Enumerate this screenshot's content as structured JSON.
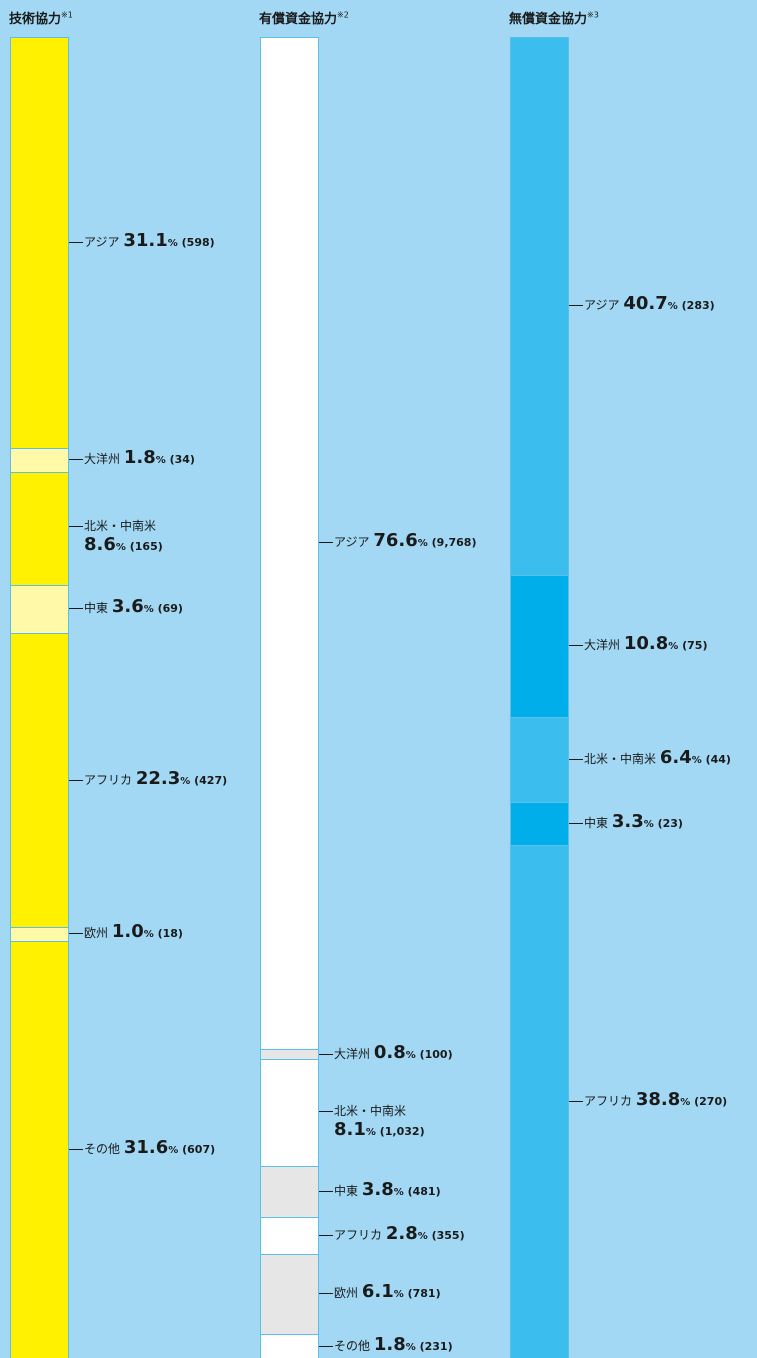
{
  "chart_data": [
    {
      "type": "bar",
      "title": "技術協力",
      "title_note": "※1",
      "colors": {
        "primary": "#fff100",
        "alt": "#fff9a8"
      },
      "segments": [
        {
          "region": "アジア",
          "percent": 31.1,
          "count": "598"
        },
        {
          "region": "大洋州",
          "percent": 1.8,
          "count": "34"
        },
        {
          "region": "北米・中南米",
          "percent": 8.6,
          "count": "165",
          "two_line": true
        },
        {
          "region": "中東",
          "percent": 3.6,
          "count": "69"
        },
        {
          "region": "アフリカ",
          "percent": 22.3,
          "count": "427"
        },
        {
          "region": "欧州",
          "percent": 1.0,
          "count": "18"
        },
        {
          "region": "その他",
          "percent": 31.6,
          "count": "607"
        }
      ]
    },
    {
      "type": "bar",
      "title": "有償資金協力",
      "title_note": "※2",
      "colors": {
        "primary": "#ffffff",
        "alt": "#e6e6e6"
      },
      "segments": [
        {
          "region": "アジア",
          "percent": 76.6,
          "count": "9,768"
        },
        {
          "region": "大洋州",
          "percent": 0.8,
          "count": "100"
        },
        {
          "region": "北米・中南米",
          "percent": 8.1,
          "count": "1,032",
          "two_line": true
        },
        {
          "region": "中東",
          "percent": 3.8,
          "count": "481"
        },
        {
          "region": "アフリカ",
          "percent": 2.8,
          "count": "355"
        },
        {
          "region": "欧州",
          "percent": 6.1,
          "count": "781"
        },
        {
          "region": "その他",
          "percent": 1.8,
          "count": "231"
        }
      ]
    },
    {
      "type": "bar",
      "title": "無償資金協力",
      "title_note": "※3",
      "colors": {
        "primary": "#3bbdee",
        "alt": "#00aee9"
      },
      "segments": [
        {
          "region": "アジア",
          "percent": 40.7,
          "count": "283"
        },
        {
          "region": "大洋州",
          "percent": 10.8,
          "count": "75"
        },
        {
          "region": "北米・中南米",
          "percent": 6.4,
          "count": "44"
        },
        {
          "region": "中東",
          "percent": 3.3,
          "count": "23"
        },
        {
          "region": "アフリカ",
          "percent": 38.8,
          "count": "270"
        }
      ]
    }
  ]
}
